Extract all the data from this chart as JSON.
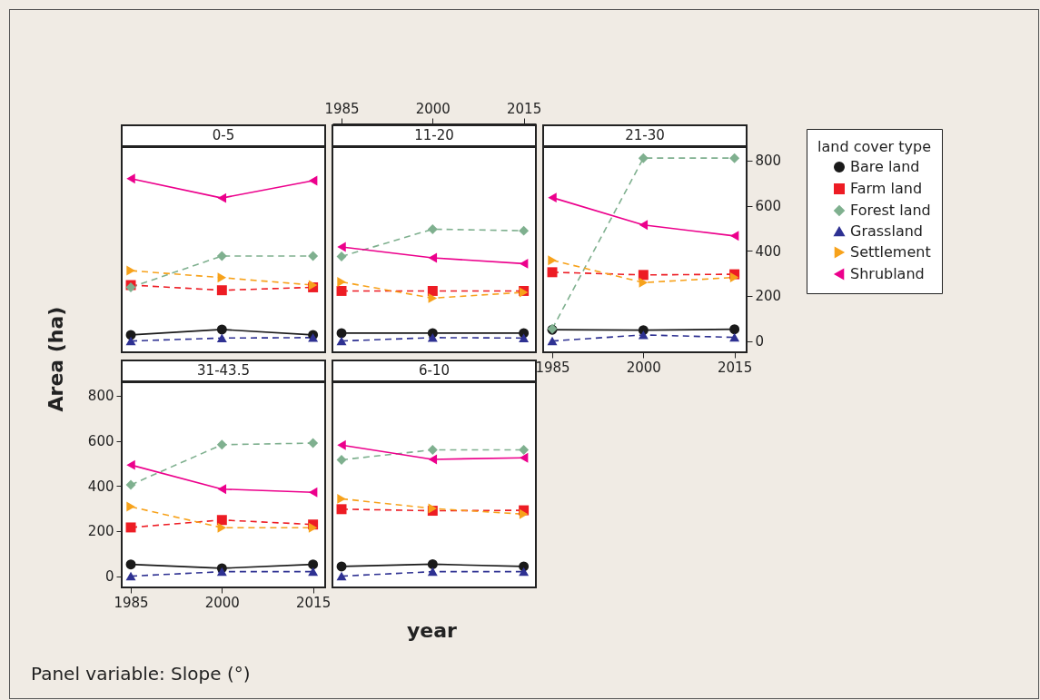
{
  "chart_data": [
    {
      "type": "line",
      "title": "0-5",
      "x": [
        1985,
        2000,
        2015
      ],
      "xlim": [
        1983.5,
        2017
      ],
      "xticks": [
        1985,
        2000,
        2015
      ],
      "ylim": [
        -50,
        860
      ],
      "yticks": [
        0,
        200,
        400,
        600,
        800
      ],
      "tick_labels": false,
      "legend": false,
      "series": [
        {
          "color": "#1a1a1a",
          "marker": "circle",
          "line_style": "solid",
          "values": [
            27,
            51,
            27
          ]
        },
        {
          "color": "#ed1c24",
          "marker": "square",
          "line_style": "dashed",
          "values": [
            248,
            225,
            238
          ]
        },
        {
          "color": "#7fb08f",
          "marker": "diamond",
          "line_style": "dashed",
          "values": [
            238,
            377,
            377
          ]
        },
        {
          "color": "#2e3192",
          "marker": "triangle",
          "line_style": "dashed",
          "values": [
            0,
            13,
            15
          ]
        },
        {
          "color": "#f7a21b",
          "marker": "triangle-right",
          "line_style": "dashed",
          "values": [
            312,
            281,
            248
          ]
        },
        {
          "color": "#ec008c",
          "marker": "triangle-left",
          "line_style": "solid",
          "values": [
            720,
            634,
            711
          ]
        }
      ]
    },
    {
      "type": "line",
      "title": "11-20",
      "x": [
        1985,
        2000,
        2015
      ],
      "xlim": [
        1983.5,
        2017
      ],
      "xticks": [
        1985,
        2000,
        2015
      ],
      "ylim": [
        -50,
        860
      ],
      "yticks": [
        0,
        200,
        400,
        600,
        800
      ],
      "tick_labels": "x",
      "legend": false,
      "series": [
        {
          "color": "#1a1a1a",
          "marker": "circle",
          "line_style": "solid",
          "values": [
            35,
            35,
            35
          ]
        },
        {
          "color": "#ed1c24",
          "marker": "square",
          "line_style": "dashed",
          "values": [
            222,
            222,
            222
          ]
        },
        {
          "color": "#7fb08f",
          "marker": "diamond",
          "line_style": "dashed",
          "values": [
            375,
            496,
            489
          ]
        },
        {
          "color": "#2e3192",
          "marker": "triangle",
          "line_style": "dashed",
          "values": [
            0,
            15,
            13
          ]
        },
        {
          "color": "#f7a21b",
          "marker": "triangle-right",
          "line_style": "dashed",
          "values": [
            262,
            190,
            216
          ]
        },
        {
          "color": "#ec008c",
          "marker": "triangle-left",
          "line_style": "solid",
          "values": [
            417,
            369,
            343
          ]
        }
      ]
    },
    {
      "type": "line",
      "title": "21-30",
      "x": [
        1985,
        2000,
        2015
      ],
      "xlim": [
        1983.5,
        2017
      ],
      "xticks": [
        1985,
        2000,
        2015
      ],
      "ylim": [
        -50,
        860
      ],
      "yticks": [
        0,
        200,
        400,
        600,
        800
      ],
      "legend": "right",
      "legend_title": "land cover type",
      "series": [
        {
          "name": "Bare land",
          "color": "#1a1a1a",
          "marker": "circle",
          "line_style": "solid",
          "values": [
            50,
            48,
            52
          ]
        },
        {
          "name": "Farm land",
          "color": "#ed1c24",
          "marker": "square",
          "line_style": "dashed",
          "values": [
            305,
            293,
            296
          ]
        },
        {
          "name": "Forest land",
          "color": "#7fb08f",
          "marker": "diamond",
          "line_style": "dashed",
          "values": [
            54,
            811,
            811
          ]
        },
        {
          "name": "Grassland",
          "color": "#2e3192",
          "marker": "triangle",
          "line_style": "dashed",
          "values": [
            0,
            27,
            16
          ]
        },
        {
          "name": "Settlement",
          "color": "#f7a21b",
          "marker": "triangle-right",
          "line_style": "dashed",
          "values": [
            358,
            259,
            282
          ]
        },
        {
          "name": "Shrubland",
          "color": "#ec008c",
          "marker": "triangle-left",
          "line_style": "solid",
          "values": [
            636,
            515,
            466
          ]
        }
      ]
    },
    {
      "type": "line",
      "title": "31-43.5",
      "xlabel": "year",
      "ylabel": "Area (ha)",
      "x": [
        1985,
        2000,
        2015
      ],
      "xlim": [
        1983.5,
        2017
      ],
      "xticks": [
        1985,
        2000,
        2015
      ],
      "ylim": [
        -50,
        860
      ],
      "yticks": [
        0,
        200,
        400,
        600,
        800
      ],
      "legend": false,
      "series": [
        {
          "color": "#1a1a1a",
          "marker": "circle",
          "line_style": "solid",
          "values": [
            52,
            35,
            52
          ]
        },
        {
          "color": "#ed1c24",
          "marker": "square",
          "line_style": "dashed",
          "values": [
            216,
            249,
            229
          ]
        },
        {
          "color": "#7fb08f",
          "marker": "diamond",
          "line_style": "dashed",
          "values": [
            405,
            583,
            590
          ]
        },
        {
          "color": "#2e3192",
          "marker": "triangle",
          "line_style": "dashed",
          "values": [
            0,
            20,
            20
          ]
        },
        {
          "color": "#f7a21b",
          "marker": "triangle-right",
          "line_style": "dashed",
          "values": [
            308,
            215,
            215
          ]
        },
        {
          "color": "#ec008c",
          "marker": "triangle-left",
          "line_style": "solid",
          "values": [
            493,
            386,
            372
          ]
        }
      ]
    },
    {
      "type": "line",
      "title": "6-10",
      "x": [
        1985,
        2000,
        2015
      ],
      "xlim": [
        1983.5,
        2017
      ],
      "xticks": [
        1985,
        2000,
        2015
      ],
      "ylim": [
        -50,
        860
      ],
      "yticks": [
        0,
        200,
        400,
        600,
        800
      ],
      "tick_labels": false,
      "legend": false,
      "annotations": [
        "Panel variable: Slope (°)"
      ],
      "series": [
        {
          "color": "#1a1a1a",
          "marker": "circle",
          "line_style": "solid",
          "values": [
            43,
            53,
            43
          ]
        },
        {
          "color": "#ed1c24",
          "marker": "square",
          "line_style": "dashed",
          "values": [
            297,
            290,
            292
          ]
        },
        {
          "color": "#7fb08f",
          "marker": "diamond",
          "line_style": "dashed",
          "values": [
            516,
            560,
            560
          ]
        },
        {
          "color": "#2e3192",
          "marker": "triangle",
          "line_style": "dashed",
          "values": [
            0,
            20,
            20
          ]
        },
        {
          "color": "#f7a21b",
          "marker": "triangle-right",
          "line_style": "dashed",
          "values": [
            343,
            300,
            275
          ]
        },
        {
          "color": "#ec008c",
          "marker": "triangle-left",
          "line_style": "solid",
          "values": [
            581,
            518,
            525
          ]
        }
      ]
    }
  ]
}
